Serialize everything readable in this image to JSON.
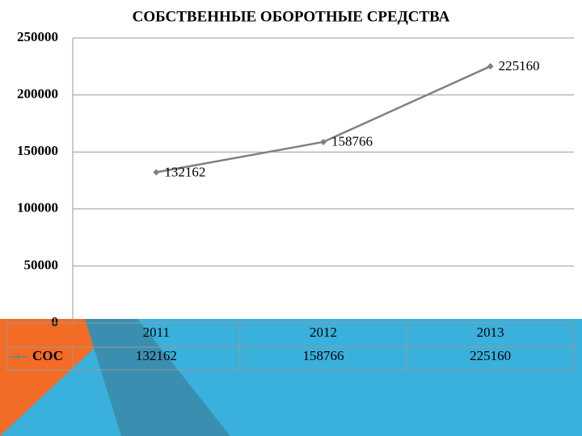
{
  "chart_data": {
    "type": "line",
    "title": "СОБСТВЕННЫЕ ОБОРОТНЫЕ СРЕДСТВА",
    "categories": [
      "2011",
      "2012",
      "2013"
    ],
    "series": [
      {
        "name": "СОС",
        "color": "#808080",
        "values": [
          132162,
          158766,
          225160
        ]
      }
    ],
    "ylim": [
      0,
      250000
    ],
    "yticks": [
      0,
      50000,
      100000,
      150000,
      200000,
      250000
    ],
    "grid": true,
    "data_table": true
  }
}
